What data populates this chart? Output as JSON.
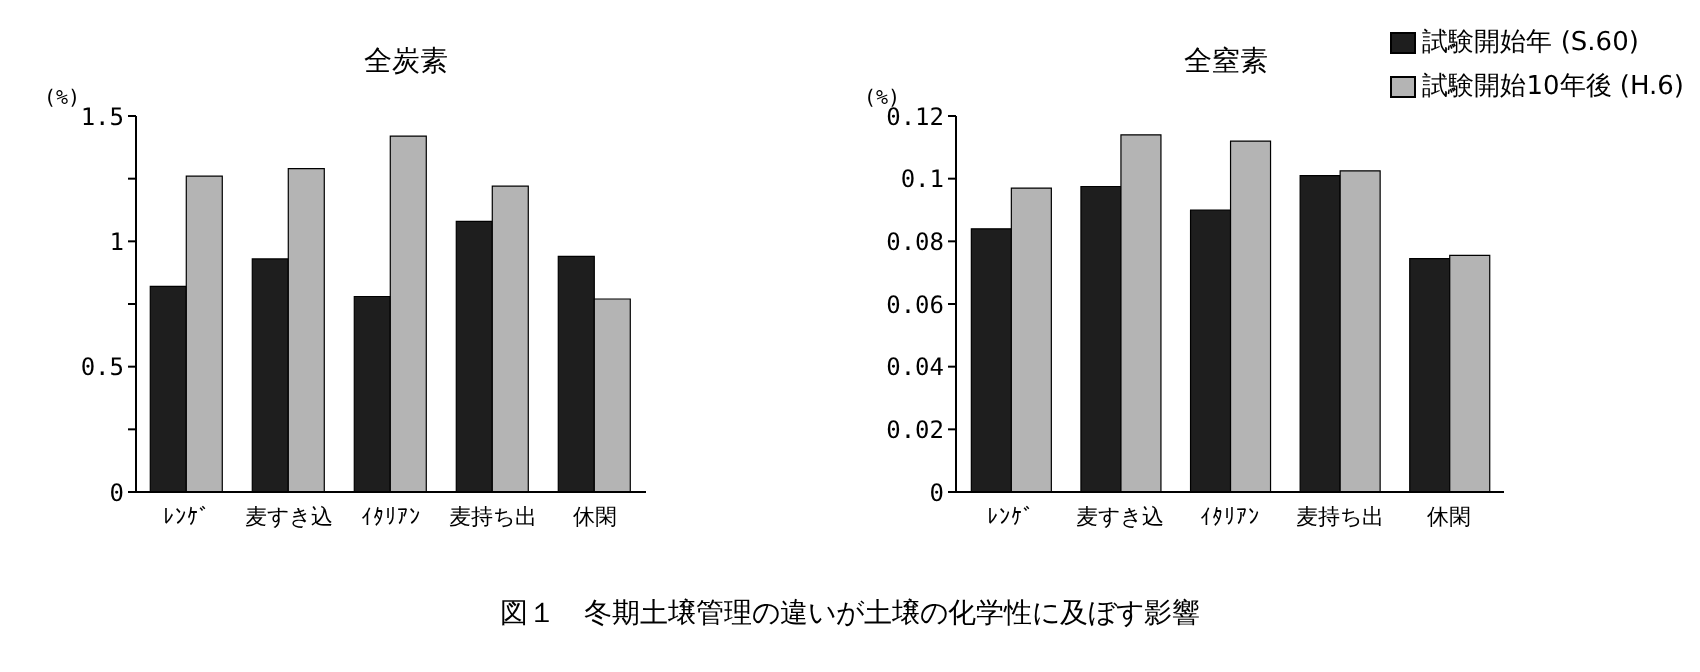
{
  "chart_data": [
    {
      "type": "bar",
      "title": "全炭素",
      "ylabel": "(%)",
      "categories": [
        "ﾚﾝｹﾞ",
        "麦すき込",
        "ｲﾀﾘｱﾝ",
        "麦持ち出",
        "休閑"
      ],
      "series": [
        {
          "color": "#1e1e1e",
          "values": [
            0.82,
            0.93,
            0.78,
            1.08,
            0.94
          ]
        },
        {
          "color": "#b4b4b4",
          "values": [
            1.26,
            1.29,
            1.42,
            1.22,
            0.77
          ]
        }
      ],
      "ylim": [
        0,
        1.5
      ],
      "yticks": [
        0,
        {
          "value": 0.25,
          "label": null
        },
        0.5,
        {
          "value": 0.75,
          "label": null
        },
        1,
        {
          "value": 1.25,
          "label": null
        },
        1.5
      ],
      "grid": false,
      "legend": false,
      "annotations": [
        "図１　冬期土壌管理の違いが土壌の化学性に及ぼす影響"
      ]
    },
    {
      "type": "bar",
      "title": "全窒素",
      "ylabel": "(%)",
      "categories": [
        "ﾚﾝｹﾞ",
        "麦すき込",
        "ｲﾀﾘｱﾝ",
        "麦持ち出",
        "休閑"
      ],
      "series": [
        {
          "name": "試験開始年 (S.60)",
          "color": "#1e1e1e",
          "values": [
            0.084,
            0.0975,
            0.09,
            0.101,
            0.0745
          ]
        },
        {
          "name": "試験開始10年後 (H.6)",
          "color": "#b4b4b4",
          "values": [
            0.097,
            0.114,
            0.112,
            0.1025,
            0.0755
          ]
        }
      ],
      "ylim": [
        0,
        0.12
      ],
      "yticks": [
        0,
        0.02,
        0.04,
        0.06,
        0.08,
        0.1,
        0.12
      ],
      "grid": false,
      "legend": "top right"
    }
  ]
}
